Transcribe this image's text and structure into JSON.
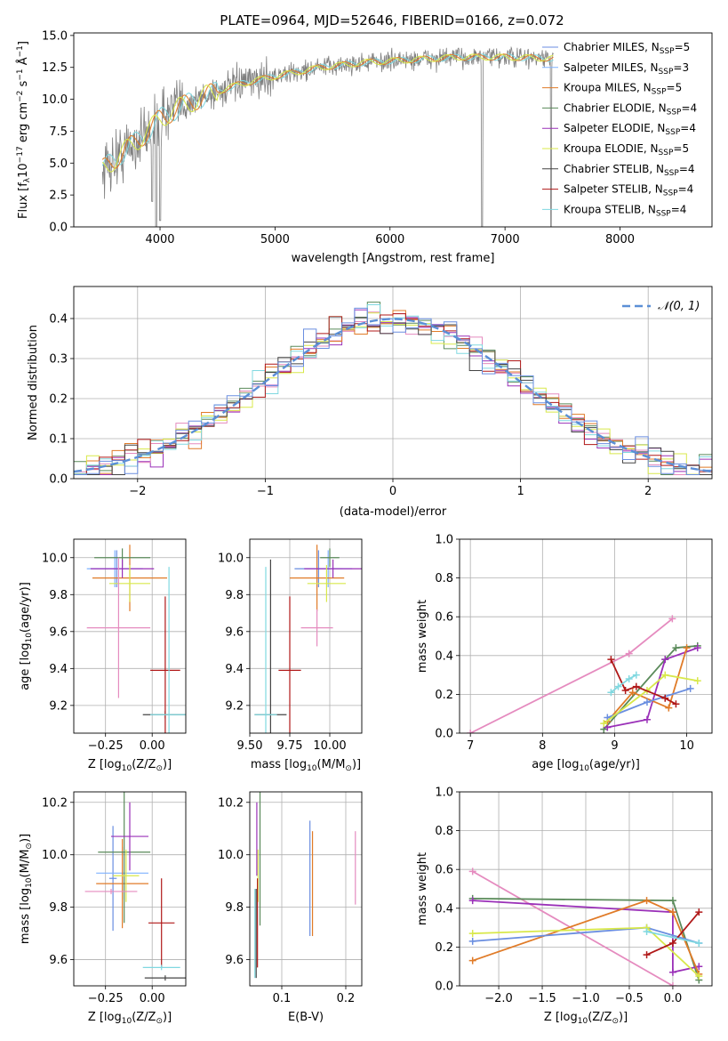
{
  "title": "PLATE=0964, MJD=52646, FIBERID=0166, z=0.072",
  "models": [
    {
      "key": "chabrier_miles",
      "label": "Chabrier MILES, N",
      "sub": "SSP",
      "tail": "=5",
      "color": "#4c72b0",
      "lc": "#6a8ee0"
    },
    {
      "key": "salpeter_miles",
      "label": "Salpeter MILES, N",
      "sub": "SSP",
      "tail": "=3",
      "color": "#5b9bd5",
      "lc": "#7fb2ff"
    },
    {
      "key": "kroupa_miles",
      "label": "Kroupa MILES, N",
      "sub": "SSP",
      "tail": "=5",
      "color": "#e07b28",
      "lc": "#e07b28"
    },
    {
      "key": "chabrier_elodie",
      "label": "Chabrier ELODIE, N",
      "sub": "SSP",
      "tail": "=4",
      "color": "#5a8a5a",
      "lc": "#5a8a5a"
    },
    {
      "key": "salpeter_elodie",
      "label": "Salpeter ELODIE, N",
      "sub": "SSP",
      "tail": "=4",
      "color": "#9a30b8",
      "lc": "#9a30b8"
    },
    {
      "key": "kroupa_elodie",
      "label": "Kroupa ELODIE, N",
      "sub": "SSP",
      "tail": "=5",
      "color": "#d8e84a",
      "lc": "#d8e84a"
    },
    {
      "key": "chabrier_stelib",
      "label": "Chabrier STELIB, N",
      "sub": "SSP",
      "tail": "=4",
      "color": "#444444",
      "lc": "#444444"
    },
    {
      "key": "salpeter_stelib",
      "label": "Salpeter STELIB, N",
      "sub": "SSP",
      "tail": "=4",
      "color": "#b01818",
      "lc": "#b01818"
    },
    {
      "key": "kroupa_stelib",
      "label": "Kroupa STELIB, N",
      "sub": "SSP",
      "tail": "=4",
      "color": "#80d8e0",
      "lc": "#80d8e0"
    }
  ],
  "chart_data": [
    {
      "id": "spectrum",
      "type": "line",
      "title": "PLATE=0964, MJD=52646, FIBERID=0166, z=0.072",
      "xlabel": "wavelength [Angstrom, rest frame]",
      "ylabel": "Flux [f",
      "ylabel_sub": "λ",
      "ylabel_rest": "10",
      "ylabel_sup": "−17",
      "ylabel_tail": " erg cm",
      "xlim": [
        3250,
        8800
      ],
      "ylim": [
        0,
        15.2
      ],
      "xticks": [
        4000,
        5000,
        6000,
        7000,
        8000
      ],
      "yticks": [
        0.0,
        2.5,
        5.0,
        7.5,
        10.0,
        12.5,
        15.0
      ],
      "xticklabels": [
        "4000",
        "5000",
        "6000",
        "7000",
        "8000"
      ],
      "yticklabels": [
        "0.0",
        "2.5",
        "5.0",
        "7.5",
        "10.0",
        "12.5",
        "15.0"
      ],
      "continuum": [
        [
          3500,
          4.5
        ],
        [
          3700,
          6.0
        ],
        [
          3900,
          7.5
        ],
        [
          4000,
          8.5
        ],
        [
          4200,
          9.5
        ],
        [
          4400,
          10.3
        ],
        [
          4700,
          11.2
        ],
        [
          5000,
          11.8
        ],
        [
          5400,
          12.5
        ],
        [
          5800,
          12.9
        ],
        [
          6200,
          13.1
        ],
        [
          6600,
          13.3
        ],
        [
          7000,
          13.3
        ],
        [
          7400,
          13.2
        ]
      ],
      "lines": [
        [
          3933,
          2
        ],
        [
          3968,
          0
        ],
        [
          4000,
          0.5
        ],
        [
          6800,
          0
        ],
        [
          7400,
          0
        ]
      ],
      "noise_x_range": [
        3500,
        7420
      ],
      "legend_position": "upper right"
    },
    {
      "id": "residuals",
      "type": "histogram",
      "xlabel": "(data-model)/error",
      "ylabel": "Normed distribution",
      "xlim": [
        -2.5,
        2.5
      ],
      "ylim": [
        0,
        0.48
      ],
      "xticks": [
        -2,
        -1,
        0,
        1,
        2
      ],
      "yticks": [
        0.0,
        0.1,
        0.2,
        0.3,
        0.4
      ],
      "xticklabels": [
        "−2",
        "−1",
        "0",
        "1",
        "2"
      ],
      "yticklabels": [
        "0.0",
        "0.1",
        "0.2",
        "0.3",
        "0.4"
      ],
      "bin_width": 0.1,
      "legend": "𝒩(0, 1)",
      "legend_position": "upper right",
      "grid": true
    },
    {
      "id": "age_vs_Z",
      "type": "scatter",
      "xlabel": "Z [log",
      "xlabel_sub": "10",
      "xlabel_rest": "(Z/Z",
      "xlabel_sub2": "⊙",
      "xlabel_tail": ")]",
      "ylabel": "age  [log",
      "ylabel_sub": "10",
      "ylabel_tail": "(age/yr)]",
      "xlim": [
        -0.42,
        0.18
      ],
      "ylim": [
        9.05,
        10.1
      ],
      "xticks": [
        -0.25,
        0.0
      ],
      "yticks": [
        9.2,
        9.4,
        9.6,
        9.8,
        10.0
      ],
      "xticklabels": [
        "−0.25",
        "0.00"
      ],
      "yticklabels": [
        "9.2",
        "9.4",
        "9.6",
        "9.8",
        "10.0"
      ],
      "points": [
        {
          "model": "chabrier_miles",
          "x": -0.19,
          "xerr": 0.02,
          "y": 9.94,
          "yerr": 0.1
        },
        {
          "model": "salpeter_miles",
          "x": -0.2,
          "xerr": 0.15,
          "y": 9.94,
          "yerr": 0.1
        },
        {
          "model": "kroupa_miles",
          "x": -0.12,
          "xerr": 0.2,
          "y": 9.89,
          "yerr": 0.18
        },
        {
          "model": "chabrier_elodie",
          "x": -0.16,
          "xerr": 0.15,
          "y": 10.0,
          "yerr": 0.05
        },
        {
          "model": "salpeter_elodie",
          "x": -0.16,
          "xerr": 0.17,
          "y": 9.94,
          "yerr": 0.05
        },
        {
          "model": "kroupa_elodie",
          "x": -0.12,
          "xerr": 0.11,
          "y": 9.86,
          "yerr": 0.1
        },
        {
          "model": "chabrier_stelib",
          "x": 0.07,
          "xerr": 0.12,
          "y": 9.15,
          "yerr": 0.02
        },
        {
          "model": "salpeter_stelib",
          "x": 0.07,
          "xerr": 0.08,
          "y": 9.39,
          "yerr": 0.4
        },
        {
          "model": "kroupa_stelib",
          "x": 0.09,
          "xerr": 0.1,
          "y": 9.15,
          "yerr": 0.8
        }
      ],
      "extra": {
        "model": "pink",
        "color": "#e58bbf",
        "x": -0.18,
        "xerr": 0.17,
        "y": 9.62,
        "yerr": 0.38
      }
    },
    {
      "id": "age_vs_mass",
      "type": "scatter",
      "xlabel": "mass [log",
      "xlabel_sub": "10",
      "xlabel_rest": "(M/M",
      "xlabel_sub2": "⊙",
      "xlabel_tail": ")]",
      "xlim": [
        9.5,
        10.2
      ],
      "ylim": [
        9.05,
        10.1
      ],
      "xticks": [
        9.5,
        9.75,
        10.0
      ],
      "yticks": [
        9.2,
        9.4,
        9.6,
        9.8,
        10.0
      ],
      "xticklabels": [
        "9.50",
        "9.75",
        "10.00"
      ],
      "yticklabels": [
        "9.2",
        "9.4",
        "9.6",
        "9.8",
        "10.0"
      ],
      "points": [
        {
          "model": "chabrier_miles",
          "x": 9.93,
          "xerr": 0.15,
          "y": 9.94,
          "yerr": 0.1
        },
        {
          "model": "salpeter_miles",
          "x": 9.99,
          "xerr": 0.15,
          "y": 9.94,
          "yerr": 0.1
        },
        {
          "model": "kroupa_miles",
          "x": 9.92,
          "xerr": 0.17,
          "y": 9.89,
          "yerr": 0.18
        },
        {
          "model": "chabrier_elodie",
          "x": 10.0,
          "xerr": 0.06,
          "y": 10.0,
          "yerr": 0.05
        },
        {
          "model": "salpeter_elodie",
          "x": 10.02,
          "xerr": 0.18,
          "y": 9.94,
          "yerr": 0.05
        },
        {
          "model": "kroupa_elodie",
          "x": 9.98,
          "xerr": 0.12,
          "y": 9.86,
          "yerr": 0.1
        },
        {
          "model": "chabrier_stelib",
          "x": 9.63,
          "xerr": 0.1,
          "y": 9.15,
          "yerr": 0.84
        },
        {
          "model": "salpeter_stelib",
          "x": 9.75,
          "xerr": 0.07,
          "y": 9.39,
          "yerr": 0.4
        },
        {
          "model": "kroupa_stelib",
          "x": 9.6,
          "xerr": 0.07,
          "y": 9.15,
          "yerr": 0.8
        }
      ],
      "extra": {
        "model": "pink",
        "color": "#e58bbf",
        "x": 9.92,
        "xerr": 0.1,
        "y": 9.62,
        "yerr": 0.1
      }
    },
    {
      "id": "weight_vs_age",
      "type": "line",
      "xlabel": "age  [log",
      "xlabel_sub": "10",
      "xlabel_tail": "(age/yr)]",
      "ylabel": "mass weight",
      "xlim": [
        6.85,
        10.35
      ],
      "ylim": [
        0,
        1.0
      ],
      "xticks": [
        7,
        8,
        9,
        10
      ],
      "yticks": [
        0.0,
        0.2,
        0.4,
        0.6,
        0.8,
        1.0
      ],
      "xticklabels": [
        "7",
        "8",
        "9",
        "10"
      ],
      "yticklabels": [
        "0.0",
        "0.2",
        "0.4",
        "0.6",
        "0.8",
        "1.0"
      ],
      "series": [
        {
          "model": "pink",
          "color": "#e58bbf",
          "x": [
            7.0,
            9.2,
            9.8
          ],
          "y": [
            0.0,
            0.41,
            0.59
          ]
        },
        {
          "model": "chabrier_elodie",
          "x": [
            8.85,
            9.7,
            9.85,
            10.15
          ],
          "y": [
            0.02,
            0.38,
            0.44,
            0.45
          ]
        },
        {
          "model": "salpeter_elodie",
          "x": [
            8.9,
            9.45,
            9.7,
            10.15
          ],
          "y": [
            0.03,
            0.07,
            0.38,
            0.44
          ]
        },
        {
          "model": "kroupa_miles",
          "x": [
            8.9,
            9.25,
            9.75,
            10.0
          ],
          "y": [
            0.06,
            0.21,
            0.13,
            0.44
          ]
        },
        {
          "model": "chabrier_miles",
          "x": [
            8.9,
            9.45,
            10.05
          ],
          "y": [
            0.08,
            0.16,
            0.23
          ]
        },
        {
          "model": "kroupa_elodie",
          "x": [
            8.85,
            9.45,
            9.7,
            10.15
          ],
          "y": [
            0.05,
            0.22,
            0.3,
            0.27
          ]
        },
        {
          "model": "salpeter_stelib",
          "x": [
            8.95,
            9.15,
            9.3,
            9.7,
            9.85
          ],
          "y": [
            0.38,
            0.22,
            0.24,
            0.18,
            0.15
          ]
        },
        {
          "model": "kroupa_stelib",
          "x": [
            8.95,
            9.05,
            9.2,
            9.3
          ],
          "y": [
            0.21,
            0.24,
            0.28,
            0.3
          ]
        }
      ]
    },
    {
      "id": "mass_vs_Z",
      "type": "scatter",
      "xlabel": "Z [log",
      "xlabel_sub": "10",
      "xlabel_rest": "(Z/Z",
      "xlabel_sub2": "⊙",
      "xlabel_tail": ")]",
      "ylabel": "mass [log",
      "ylabel_sub": "10",
      "ylabel_rest": "(M/M",
      "ylabel_sub2": "⊙",
      "ylabel_tail": ")]",
      "xlim": [
        -0.42,
        0.18
      ],
      "ylim": [
        9.5,
        10.24
      ],
      "xticks": [
        -0.25,
        0.0
      ],
      "yticks": [
        9.6,
        9.8,
        10.0,
        10.2
      ],
      "xticklabels": [
        "−0.25",
        "0.00"
      ],
      "yticklabels": [
        "9.6",
        "9.8",
        "10.0",
        "10.2"
      ],
      "points": [
        {
          "model": "chabrier_miles",
          "x": -0.21,
          "xerr": 0.02,
          "y": 9.91,
          "yerr": 0.2
        },
        {
          "model": "salpeter_miles",
          "x": -0.16,
          "xerr": 0.14,
          "y": 9.93,
          "yerr": 0.1
        },
        {
          "model": "kroupa_miles",
          "x": -0.16,
          "xerr": 0.14,
          "y": 9.89,
          "yerr": 0.17
        },
        {
          "model": "chabrier_elodie",
          "x": -0.15,
          "xerr": 0.14,
          "y": 10.01,
          "yerr": 0.27
        },
        {
          "model": "salpeter_elodie",
          "x": -0.12,
          "xerr": 0.1,
          "y": 10.07,
          "yerr": 0.13
        },
        {
          "model": "kroupa_elodie",
          "x": -0.14,
          "xerr": 0.07,
          "y": 9.92,
          "yerr": 0.1
        },
        {
          "model": "chabrier_stelib",
          "x": 0.07,
          "xerr": 0.11,
          "y": 9.53,
          "yerr": 0.01
        },
        {
          "model": "salpeter_stelib",
          "x": 0.05,
          "xerr": 0.07,
          "y": 9.74,
          "yerr": 0.17
        },
        {
          "model": "kroupa_stelib",
          "x": 0.05,
          "xerr": 0.1,
          "y": 9.57,
          "yerr": 0.01
        }
      ],
      "extra": {
        "model": "pink",
        "color": "#e58bbf",
        "x": -0.22,
        "xerr": 0.14,
        "y": 9.86,
        "yerr": 0.01
      }
    },
    {
      "id": "mass_vs_ebv",
      "type": "scatter",
      "xlabel": "E(B-V)",
      "xlim": [
        0.05,
        0.225
      ],
      "ylim": [
        9.5,
        10.24
      ],
      "xticks": [
        0.1,
        0.2
      ],
      "yticks": [
        9.6,
        9.8,
        10.0,
        10.2
      ],
      "xticklabels": [
        "0.1",
        "0.2"
      ],
      "yticklabels": [
        "9.6",
        "9.8",
        "10.0",
        "10.2"
      ],
      "points": [
        {
          "model": "chabrier_miles",
          "x": 0.144,
          "y": 9.91,
          "yerr": 0.22
        },
        {
          "model": "kroupa_miles",
          "x": 0.148,
          "y": 9.89,
          "yerr": 0.2
        },
        {
          "model": "chabrier_elodie",
          "x": 0.066,
          "y": 10.0,
          "yerr": 0.27
        },
        {
          "model": "salpeter_elodie",
          "x": 0.061,
          "y": 10.06,
          "yerr": 0.14
        },
        {
          "model": "kroupa_elodie",
          "x": 0.063,
          "y": 9.92,
          "yerr": 0.1
        },
        {
          "model": "chabrier_stelib",
          "x": 0.06,
          "y": 9.7,
          "yerr": 0.17
        },
        {
          "model": "salpeter_stelib",
          "x": 0.062,
          "y": 9.74,
          "yerr": 0.17
        },
        {
          "model": "kroupa_stelib",
          "x": 0.058,
          "y": 9.7,
          "yerr": 0.17
        }
      ],
      "extra": {
        "model": "pink",
        "color": "#e58bbf",
        "x": 0.215,
        "y": 9.95,
        "yerr": 0.14
      }
    },
    {
      "id": "weight_vs_Z",
      "type": "line",
      "xlabel": "Z [log",
      "xlabel_sub": "10",
      "xlabel_rest": "(Z/Z",
      "xlabel_sub2": "⊙",
      "xlabel_tail": ")]",
      "ylabel": "mass weight",
      "xlim": [
        -2.45,
        0.45
      ],
      "ylim": [
        0,
        1.0
      ],
      "xticks": [
        -2.0,
        -1.5,
        -1.0,
        -0.5,
        0.0
      ],
      "yticks": [
        0.0,
        0.2,
        0.4,
        0.6,
        0.8,
        1.0
      ],
      "xticklabels": [
        "−2.0",
        "−1.5",
        "−1.0",
        "−0.5",
        "0.0"
      ],
      "yticklabels": [
        "0.0",
        "0.2",
        "0.4",
        "0.6",
        "0.8",
        "1.0"
      ],
      "series": [
        {
          "model": "pink",
          "color": "#e58bbf",
          "x": [
            -2.3,
            0.0
          ],
          "y": [
            0.59,
            0.0
          ]
        },
        {
          "model": "chabrier_elodie",
          "x": [
            -2.3,
            0.0,
            0.3
          ],
          "y": [
            0.45,
            0.44,
            0.03
          ]
        },
        {
          "model": "salpeter_elodie",
          "x": [
            -2.3,
            0.0,
            0.0,
            0.3
          ],
          "y": [
            0.44,
            0.38,
            0.07,
            0.1
          ]
        },
        {
          "model": "kroupa_miles",
          "x": [
            -2.3,
            -0.3,
            0.0,
            0.3
          ],
          "y": [
            0.13,
            0.44,
            0.38,
            0.06
          ]
        },
        {
          "model": "chabrier_miles",
          "x": [
            -2.3,
            -0.3,
            0.3
          ],
          "y": [
            0.23,
            0.3,
            0.22
          ]
        },
        {
          "model": "kroupa_elodie",
          "x": [
            -2.3,
            -0.3,
            0.3
          ],
          "y": [
            0.27,
            0.3,
            0.05
          ]
        },
        {
          "model": "salpeter_stelib",
          "x": [
            -0.3,
            0.0,
            0.3
          ],
          "y": [
            0.16,
            0.22,
            0.38
          ]
        },
        {
          "model": "kroupa_stelib",
          "x": [
            -0.3,
            0.3
          ],
          "y": [
            0.28,
            0.22
          ]
        }
      ]
    }
  ]
}
